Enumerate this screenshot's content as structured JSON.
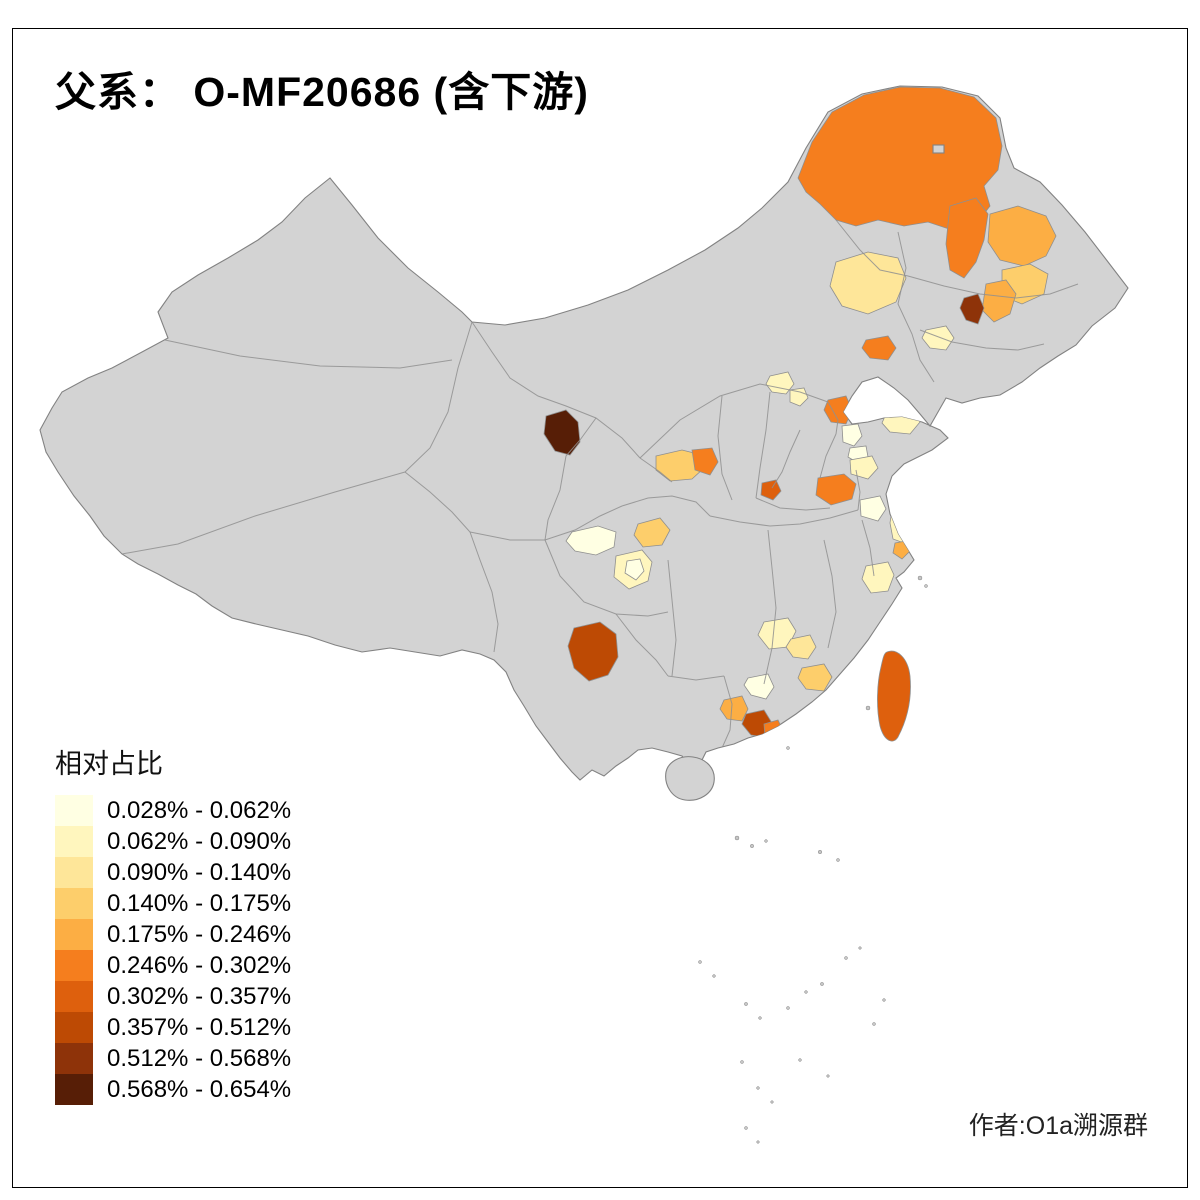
{
  "title": "父系： O-MF20686 (含下游)",
  "author": "作者:O1a溯源群",
  "legend": {
    "title": "相对占比",
    "bins": [
      {
        "label": "0.028% - 0.062%",
        "color": "#FFFFE3"
      },
      {
        "label": "0.062% - 0.090%",
        "color": "#FFF6BE"
      },
      {
        "label": "0.090% - 0.140%",
        "color": "#FEE699"
      },
      {
        "label": "0.140% - 0.175%",
        "color": "#FDCE6B"
      },
      {
        "label": "0.175% - 0.246%",
        "color": "#FCAE44"
      },
      {
        "label": "0.246% - 0.302%",
        "color": "#F57E1E"
      },
      {
        "label": "0.302% - 0.357%",
        "color": "#DE600D"
      },
      {
        "label": "0.357% - 0.512%",
        "color": "#BD4A04"
      },
      {
        "label": "0.512% - 0.568%",
        "color": "#8E3309"
      },
      {
        "label": "0.568% - 0.654%",
        "color": "#571E06"
      }
    ]
  },
  "map": {
    "base_fill": "#D3D3D3",
    "border_color": "#8F8F8F",
    "outline_color": "#828282",
    "sea_islands_color": "#C6C6C6",
    "regions": [
      {
        "id": "inner-mongolia-hulunbuir",
        "range": "0.246% - 0.302%",
        "color": "#F57E1E"
      },
      {
        "id": "heilongjiang-west-strip",
        "range": "0.246% - 0.302%",
        "color": "#F57E1E"
      },
      {
        "id": "heilongjiang-north",
        "range": "0.175% - 0.246%",
        "color": "#FCAE44"
      },
      {
        "id": "xingan-league-pale",
        "range": "0.090% - 0.140%",
        "color": "#FEE699"
      },
      {
        "id": "jilin-west",
        "range": "0.140% - 0.175%",
        "color": "#FDCE6B"
      },
      {
        "id": "jilin-central",
        "range": "0.175% - 0.246%",
        "color": "#FCAE44"
      },
      {
        "id": "jilin-south-dark",
        "range": "0.512% - 0.568%",
        "color": "#8E3309"
      },
      {
        "id": "liaoning-west",
        "range": "0.246% - 0.302%",
        "color": "#F57E1E"
      },
      {
        "id": "liaoning-central-pale",
        "range": "0.062% - 0.090%",
        "color": "#FFF6BE"
      },
      {
        "id": "beijing",
        "range": "0.246% - 0.302%",
        "color": "#F57E1E"
      },
      {
        "id": "hebei-north-pale-a",
        "range": "0.062% - 0.090%",
        "color": "#FFF6BE"
      },
      {
        "id": "hebei-north-pale-b",
        "range": "0.062% - 0.090%",
        "color": "#FFF6BE"
      },
      {
        "id": "tianjin-pale",
        "range": "0.028% - 0.062%",
        "color": "#FFFFE3"
      },
      {
        "id": "shandong-peninsula-pale",
        "range": "0.062% - 0.090%",
        "color": "#FFF6BE"
      },
      {
        "id": "hebei-south-pale",
        "range": "0.028% - 0.062%",
        "color": "#FFFFE3"
      },
      {
        "id": "gansu-dark-brown",
        "range": "0.568% - 0.654%",
        "color": "#571E06"
      },
      {
        "id": "gansu-east-light",
        "range": "0.140% - 0.175%",
        "color": "#FDCE6B"
      },
      {
        "id": "shaanxi-north-orange",
        "range": "0.246% - 0.302%",
        "color": "#F57E1E"
      },
      {
        "id": "henan-small-red",
        "range": "0.302% - 0.357%",
        "color": "#DE600D"
      },
      {
        "id": "jiangsu-north-orange",
        "range": "0.246% - 0.302%",
        "color": "#F57E1E"
      },
      {
        "id": "shandong-south-pale",
        "range": "0.062% - 0.090%",
        "color": "#FFF6BE"
      },
      {
        "id": "jiangsu-central-pale",
        "range": "0.028% - 0.062%",
        "color": "#FFFFE3"
      },
      {
        "id": "jiangsu-coast-pale",
        "range": "0.062% - 0.090%",
        "color": "#FFF6BE"
      },
      {
        "id": "jiangsu-coast-orange-dot",
        "range": "0.175% - 0.246%",
        "color": "#FCAE44"
      },
      {
        "id": "sichuan-northwest-cream",
        "range": "0.028% - 0.062%",
        "color": "#FFFFE3"
      },
      {
        "id": "sichuan-north-mustard",
        "range": "0.140% - 0.175%",
        "color": "#FDCE6B"
      },
      {
        "id": "sichuan-chengdu-pale",
        "range": "0.062% - 0.090%",
        "color": "#FFF6BE"
      },
      {
        "id": "sichuan-chengdu-core",
        "range": "0.028% - 0.062%",
        "color": "#FFFFE3"
      },
      {
        "id": "yunnan-central-dark",
        "range": "0.357% - 0.512%",
        "color": "#BD4A04"
      },
      {
        "id": "hunan-changsha-pale",
        "range": "0.062% - 0.090%",
        "color": "#FFF6BE"
      },
      {
        "id": "jiangxi-west-yellow",
        "range": "0.090% - 0.140%",
        "color": "#FEE699"
      },
      {
        "id": "guangdong-north-cream",
        "range": "0.028% - 0.062%",
        "color": "#FFFFE3"
      },
      {
        "id": "fujian-light-orange",
        "range": "0.140% - 0.175%",
        "color": "#FDCE6B"
      },
      {
        "id": "guangdong-west-orange",
        "range": "0.175% - 0.246%",
        "color": "#FCAE44"
      },
      {
        "id": "pearl-river-delta-dark",
        "range": "0.357% - 0.512%",
        "color": "#BD4A04"
      },
      {
        "id": "pearl-delta-east-orange",
        "range": "0.246% - 0.302%",
        "color": "#F57E1E"
      },
      {
        "id": "taiwan",
        "range": "0.302% - 0.357%",
        "color": "#DE600D"
      },
      {
        "id": "zhejiang-pale",
        "range": "0.062% - 0.090%",
        "color": "#FFF6BE"
      }
    ]
  },
  "chart_data": {
    "type": "heatmap",
    "subtype": "choropleth-map-china-prefecture-level",
    "title": "父系： O-MF20686 (含下游)",
    "legend_title": "相对占比",
    "unit": "%",
    "base_region_color_no_data": "#D3D3D3",
    "bins": [
      {
        "range": "0.028% - 0.062%",
        "color": "#FFFFE3"
      },
      {
        "range": "0.062% - 0.090%",
        "color": "#FFF6BE"
      },
      {
        "range": "0.090% - 0.140%",
        "color": "#FEE699"
      },
      {
        "range": "0.140% - 0.175%",
        "color": "#FDCE6B"
      },
      {
        "range": "0.175% - 0.246%",
        "color": "#FCAE44"
      },
      {
        "range": "0.246% - 0.302%",
        "color": "#F57E1E"
      },
      {
        "range": "0.302% - 0.357%",
        "color": "#DE600D"
      },
      {
        "range": "0.357% - 0.512%",
        "color": "#BD4A04"
      },
      {
        "range": "0.512% - 0.568%",
        "color": "#8E3309"
      },
      {
        "range": "0.568% - 0.654%",
        "color": "#571E06"
      }
    ],
    "regions": [
      {
        "location": "Hulunbuir area, NE Inner Mongolia",
        "value_range": "0.246% - 0.302%"
      },
      {
        "location": "W Heilongjiang strip",
        "value_range": "0.246% - 0.302%"
      },
      {
        "location": "N Heilongjiang area",
        "value_range": "0.175% - 0.246%"
      },
      {
        "location": "Xing'an League area (pale)",
        "value_range": "0.090% - 0.140%"
      },
      {
        "location": "W Jilin cell",
        "value_range": "0.140% - 0.175%"
      },
      {
        "location": "C Jilin cell",
        "value_range": "0.175% - 0.246%"
      },
      {
        "location": "S Jilin small dark prefecture",
        "value_range": "0.512% - 0.568%"
      },
      {
        "location": "W Liaoning cell",
        "value_range": "0.246% - 0.302%"
      },
      {
        "location": "C Liaoning pale cell",
        "value_range": "0.062% - 0.090%"
      },
      {
        "location": "Beijing area",
        "value_range": "0.246% - 0.302%"
      },
      {
        "location": "NW Hebei pale cells",
        "value_range": "0.062% - 0.090%"
      },
      {
        "location": "Tianjin area pale cell",
        "value_range": "0.028% - 0.062%"
      },
      {
        "location": "Shandong peninsula pale cell",
        "value_range": "0.062% - 0.090%"
      },
      {
        "location": "SE Hebei pale cell",
        "value_range": "0.028% - 0.062%"
      },
      {
        "location": "C Gansu corridor (darkest region)",
        "value_range": "0.568% - 0.654%"
      },
      {
        "location": "E Gansu light-orange strip",
        "value_range": "0.140% - 0.175%"
      },
      {
        "location": "N Shaanxi orange cell",
        "value_range": "0.246% - 0.302%"
      },
      {
        "location": "N Henan small red-orange cell",
        "value_range": "0.302% - 0.357%"
      },
      {
        "location": "NW Jiangsu orange region",
        "value_range": "0.246% - 0.302%"
      },
      {
        "location": "S Shandong pale cell",
        "value_range": "0.062% - 0.090%"
      },
      {
        "location": "C Jiangsu pale cell",
        "value_range": "0.028% - 0.062%"
      },
      {
        "location": "Jiangsu coastal pale strip",
        "value_range": "0.062% - 0.090%"
      },
      {
        "location": "Jiangsu coast small orange cell",
        "value_range": "0.175% - 0.246%"
      },
      {
        "location": "NW Sichuan cream cell",
        "value_range": "0.028% - 0.062%"
      },
      {
        "location": "N Sichuan mustard cell",
        "value_range": "0.140% - 0.175%"
      },
      {
        "location": "Chengdu-area pale cells",
        "value_range": "0.062% - 0.090%"
      },
      {
        "location": "Chengdu-area core cell",
        "value_range": "0.028% - 0.062%"
      },
      {
        "location": "C Yunnan dark-orange region",
        "value_range": "0.357% - 0.512%"
      },
      {
        "location": "NE Hunan pale cell",
        "value_range": "0.062% - 0.090%"
      },
      {
        "location": "W Jiangxi yellow cell",
        "value_range": "0.090% - 0.140%"
      },
      {
        "location": "N Guangdong cream cell",
        "value_range": "0.028% - 0.062%"
      },
      {
        "location": "C Fujian light-orange cell",
        "value_range": "0.140% - 0.175%"
      },
      {
        "location": "W Guangdong orange cell",
        "value_range": "0.175% - 0.246%"
      },
      {
        "location": "Pearl River Delta dark-orange region",
        "value_range": "0.357% - 0.512%"
      },
      {
        "location": "E Pearl Delta orange cell",
        "value_range": "0.246% - 0.302%"
      },
      {
        "location": "Taiwan",
        "value_range": "0.302% - 0.357%"
      },
      {
        "location": "C Zhejiang pale cell",
        "value_range": "0.062% - 0.090%"
      }
    ]
  }
}
